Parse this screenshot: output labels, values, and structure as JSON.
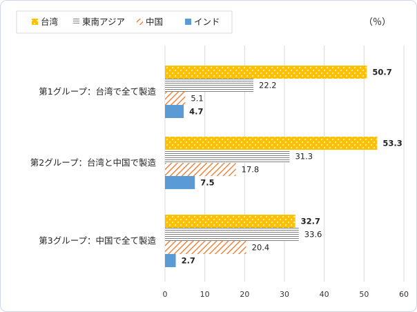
{
  "chart_data": {
    "type": "bar",
    "orientation": "horizontal",
    "unit": "（％）",
    "categories": [
      "第1グループ：台湾で全て製造",
      "第2グループ：台湾と中国で製造",
      "第3グループ：中国で全て製造"
    ],
    "series": [
      {
        "name": "台湾",
        "values": [
          50.7,
          53.3,
          32.7
        ],
        "color": "#ffc000",
        "pattern": "dots"
      },
      {
        "name": "東南アジア",
        "values": [
          22.2,
          31.3,
          33.6
        ],
        "color": "#7f7f7f",
        "pattern": "horizontal-lines"
      },
      {
        "name": "中国",
        "values": [
          5.1,
          17.8,
          20.4
        ],
        "color": "#ed7d31",
        "pattern": "diagonal-lines"
      },
      {
        "name": "インド",
        "values": [
          4.7,
          7.5,
          2.7
        ],
        "color": "#5b9bd5",
        "pattern": "solid"
      }
    ],
    "xlim": [
      0,
      60
    ],
    "xticks": [
      0,
      10,
      20,
      30,
      40,
      50,
      60
    ],
    "grid": "vertical",
    "legend_position": "top-left"
  }
}
